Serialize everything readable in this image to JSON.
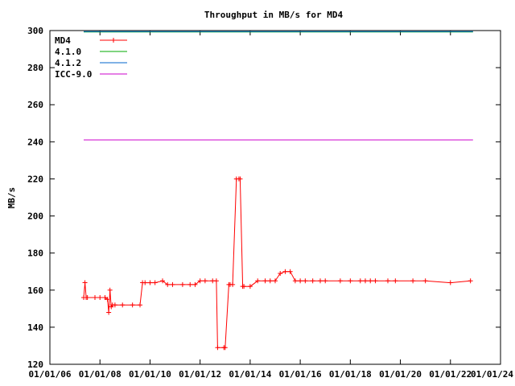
{
  "chart_data": {
    "type": "line",
    "title": "Throughput in MB/s for MD4",
    "xlabel": "",
    "ylabel": "MB/s",
    "xlim": [
      2006,
      2024
    ],
    "ylim": [
      120,
      300
    ],
    "x_tick_values": [
      2006,
      2008,
      2010,
      2012,
      2014,
      2016,
      2018,
      2020,
      2022,
      2024
    ],
    "x_tick_labels": [
      "01/01/06",
      "01/01/08",
      "01/01/10",
      "01/01/12",
      "01/01/14",
      "01/01/16",
      "01/01/18",
      "01/01/20",
      "01/01/22",
      "01/01/24"
    ],
    "y_ticks": [
      120,
      140,
      160,
      180,
      200,
      220,
      240,
      260,
      280,
      300
    ],
    "grid": false,
    "legend_position": "top-left",
    "series": [
      {
        "name": "MD4",
        "color": "#ff0000",
        "marker": "plus",
        "x": [
          2007.35,
          2007.4,
          2007.45,
          2007.5,
          2007.8,
          2008.0,
          2008.2,
          2008.3,
          2008.35,
          2008.4,
          2008.45,
          2008.5,
          2008.6,
          2008.9,
          2009.3,
          2009.6,
          2009.7,
          2009.8,
          2010.0,
          2010.2,
          2010.5,
          2010.7,
          2010.9,
          2011.3,
          2011.6,
          2011.8,
          2012.0,
          2012.2,
          2012.5,
          2012.65,
          2012.7,
          2012.95,
          2013.0,
          2013.15,
          2013.2,
          2013.3,
          2013.45,
          2013.55,
          2013.6,
          2013.7,
          2013.75,
          2014.0,
          2014.3,
          2014.6,
          2014.8,
          2015.0,
          2015.2,
          2015.4,
          2015.6,
          2015.8,
          2016.0,
          2016.2,
          2016.5,
          2016.8,
          2017.0,
          2017.6,
          2018.0,
          2018.4,
          2018.6,
          2018.8,
          2019.0,
          2019.5,
          2019.8,
          2020.5,
          2021.0,
          2022.0,
          2022.8
        ],
        "y": [
          156,
          164,
          156,
          156,
          156,
          156,
          156,
          155,
          148,
          160,
          151,
          152,
          152,
          152,
          152,
          152,
          164,
          164,
          164,
          164,
          165,
          163,
          163,
          163,
          163,
          163,
          165,
          165,
          165,
          165,
          129,
          129,
          129,
          163,
          163,
          163,
          220,
          220,
          220,
          162,
          162,
          162,
          165,
          165,
          165,
          165,
          169,
          170,
          170,
          165,
          165,
          165,
          165,
          165,
          165,
          165,
          165,
          165,
          165,
          165,
          165,
          165,
          165,
          165,
          165,
          164,
          165
        ]
      },
      {
        "name": "4.1.0",
        "color": "#00aa00",
        "x": [
          2007.35,
          2022.9
        ],
        "y": [
          299.2,
          299.2
        ]
      },
      {
        "name": "4.1.2",
        "color": "#0066cc",
        "x": [
          2007.35,
          2022.9
        ],
        "y": [
          299.5,
          299.5
        ]
      },
      {
        "name": "ICC-9.0",
        "color": "#cc00cc",
        "x": [
          2007.35,
          2022.9
        ],
        "y": [
          241,
          241
        ]
      }
    ]
  }
}
